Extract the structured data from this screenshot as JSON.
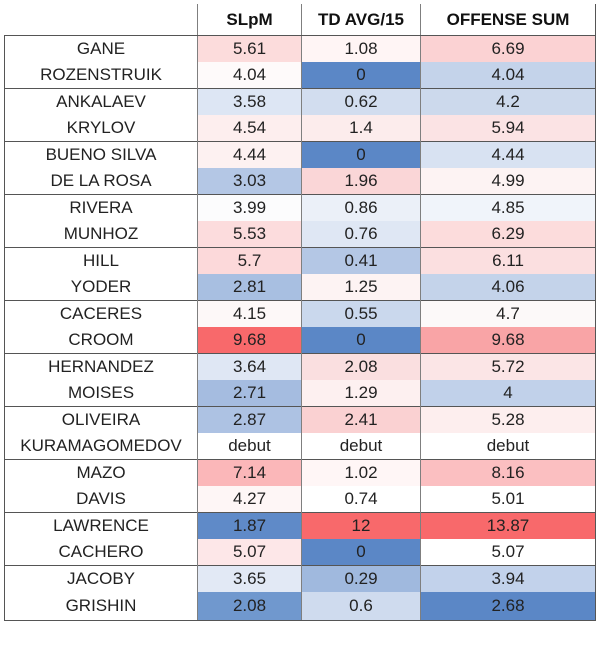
{
  "table": {
    "headers": [
      "",
      "SLpM",
      "TD AVG/15",
      "OFFENSE SUM"
    ],
    "rows": [
      {
        "fighter": "GANE",
        "slpm": "5.61",
        "td": "1.08",
        "sum": "6.69",
        "colors": [
          "#fcdcdc",
          "#fff5f5",
          "#fbd2d3"
        ],
        "group_start": true
      },
      {
        "fighter": "ROZENSTRUIK",
        "slpm": "4.04",
        "td": "0",
        "sum": "4.04",
        "colors": [
          "#fefafa",
          "#5b87c6",
          "#c4d3ea"
        ],
        "group_start": false
      },
      {
        "fighter": "ANKALAEV",
        "slpm": "3.58",
        "td": "0.62",
        "sum": "4.2",
        "colors": [
          "#dde6f4",
          "#d2ddef",
          "#ccd9ec"
        ],
        "group_start": true
      },
      {
        "fighter": "KRYLOV",
        "slpm": "4.54",
        "td": "1.4",
        "sum": "5.94",
        "colors": [
          "#fdeeee",
          "#fcecec",
          "#fbe3e4"
        ],
        "group_start": false
      },
      {
        "fighter": "BUENO SILVA",
        "slpm": "4.44",
        "td": "0",
        "sum": "4.44",
        "colors": [
          "#fdf1f1",
          "#5b87c6",
          "#d8e2f2"
        ],
        "group_start": true
      },
      {
        "fighter": "DE LA ROSA",
        "slpm": "3.03",
        "td": "1.96",
        "sum": "4.99",
        "colors": [
          "#b4c7e5",
          "#fad6d7",
          "#fdf3f3"
        ],
        "group_start": false
      },
      {
        "fighter": "RIVERA",
        "slpm": "3.99",
        "td": "0.86",
        "sum": "4.85",
        "colors": [
          "#fcfcfd",
          "#ebf0f8",
          "#f0f4fa"
        ],
        "group_start": true
      },
      {
        "fighter": "MUNHOZ",
        "slpm": "5.53",
        "td": "0.76",
        "sum": "6.29",
        "colors": [
          "#fcdcdd",
          "#dfe7f4",
          "#fcdcdc"
        ],
        "group_start": false
      },
      {
        "fighter": "HILL",
        "slpm": "5.7",
        "td": "0.41",
        "sum": "6.11",
        "colors": [
          "#fcd9da",
          "#b4c7e5",
          "#fbdfe0"
        ],
        "group_start": true
      },
      {
        "fighter": "YODER",
        "slpm": "2.81",
        "td": "1.25",
        "sum": "4.06",
        "colors": [
          "#a8bfe1",
          "#fdf3f3",
          "#c4d3ea"
        ],
        "group_start": false
      },
      {
        "fighter": "CACERES",
        "slpm": "4.15",
        "td": "0.55",
        "sum": "4.7",
        "colors": [
          "#fdf8f8",
          "#cad8ed",
          "#fcf9f9"
        ],
        "group_start": true
      },
      {
        "fighter": "CROOM",
        "slpm": "9.68",
        "td": "0",
        "sum": "9.68",
        "colors": [
          "#f8696b",
          "#5b87c6",
          "#f9a4a6"
        ],
        "group_start": false
      },
      {
        "fighter": "HERNANDEZ",
        "slpm": "3.64",
        "td": "2.08",
        "sum": "5.72",
        "colors": [
          "#dfe7f4",
          "#fadfe0",
          "#fbe5e6"
        ],
        "group_start": true
      },
      {
        "fighter": "MOISES",
        "slpm": "2.71",
        "td": "1.29",
        "sum": "4",
        "colors": [
          "#a5bce0",
          "#fdf0f0",
          "#c1d1ea"
        ],
        "group_start": false
      },
      {
        "fighter": "OLIVEIRA",
        "slpm": "2.87",
        "td": "2.41",
        "sum": "5.28",
        "colors": [
          "#adc2e3",
          "#fad1d2",
          "#fdeeee"
        ],
        "group_start": true
      },
      {
        "fighter": "KURAMAGOMEDOV",
        "slpm": "debut",
        "td": "debut",
        "sum": "debut",
        "colors": [
          "#ffffff",
          "#ffffff",
          "#ffffff"
        ],
        "group_start": false
      },
      {
        "fighter": "MAZO",
        "slpm": "7.14",
        "td": "1.02",
        "sum": "8.16",
        "colors": [
          "#fbb7b9",
          "#fff6f6",
          "#fbbfc1"
        ],
        "group_start": true
      },
      {
        "fighter": "DAVIS",
        "slpm": "4.27",
        "td": "0.74",
        "sum": "5.01",
        "colors": [
          "#fef6f6",
          "#ffffff",
          "#ffffff"
        ],
        "group_start": false
      },
      {
        "fighter": "LAWRENCE",
        "slpm": "1.87",
        "td": "12",
        "sum": "13.87",
        "colors": [
          "#5f8ac8",
          "#f8696b",
          "#f8696b"
        ],
        "group_start": true
      },
      {
        "fighter": "CACHERO",
        "slpm": "5.07",
        "td": "0",
        "sum": "5.07",
        "colors": [
          "#fde7e8",
          "#5b87c6",
          "#ffffff"
        ],
        "group_start": false
      },
      {
        "fighter": "JACOBY",
        "slpm": "3.65",
        "td": "0.29",
        "sum": "3.94",
        "colors": [
          "#e2e9f5",
          "#a0b9de",
          "#c2d2eb"
        ],
        "group_start": true
      },
      {
        "fighter": "GRISHIN",
        "slpm": "2.08",
        "td": "0.6",
        "sum": "2.68",
        "colors": [
          "#7098ce",
          "#cfdbee",
          "#5b87c6"
        ],
        "group_start": false
      }
    ]
  }
}
